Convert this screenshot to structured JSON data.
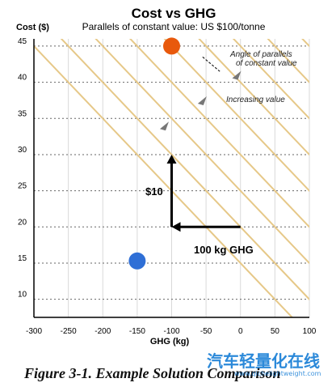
{
  "chart_data": {
    "type": "scatter",
    "title": "Cost vs GHG",
    "subtitle": "Parallels of constant value: US $100/tonne",
    "xlabel": "GHG (kg)",
    "ylabel": "Cost ($)",
    "xlim": [
      -300,
      100
    ],
    "ylim": [
      10,
      45
    ],
    "x_ticks": [
      -300,
      -250,
      -200,
      -150,
      -100,
      -50,
      0,
      50,
      100
    ],
    "y_ticks": [
      10,
      15,
      20,
      25,
      30,
      35,
      40,
      45
    ],
    "grid": true,
    "points": [
      {
        "x": -100,
        "y": 45,
        "color": "#e8590c"
      },
      {
        "x": -150,
        "y": 15.3,
        "color": "#2f6fd6"
      }
    ],
    "parallel_lines": {
      "slope": -0.1,
      "y_intercepts_at_x0": [
        15,
        20,
        25,
        30,
        35,
        40,
        45,
        50,
        55,
        60
      ],
      "color": "#e6c888"
    },
    "direction_markers": [
      {
        "x": -110,
        "y": 34
      },
      {
        "x": -55,
        "y": 37.5
      },
      {
        "x": -5,
        "y": 41
      }
    ],
    "annotations": {
      "angle_note_line1": "Angle of parallels",
      "angle_note_line2": "of constant value",
      "increasing_note": "Increasing value",
      "vertical_arrow_label": "$10",
      "horizontal_arrow_label": "100 kg GHG"
    },
    "arrows": {
      "vertical": {
        "x": -100,
        "y_from": 20,
        "y_to": 30
      },
      "horizontal": {
        "x_from": 0,
        "x_to": -100,
        "y": 20
      }
    }
  },
  "caption": "Figure 3-1. Example Solution Comparison",
  "watermark": "汽车轻量化在线",
  "watermark_sub": "www.qichelightweight.com"
}
